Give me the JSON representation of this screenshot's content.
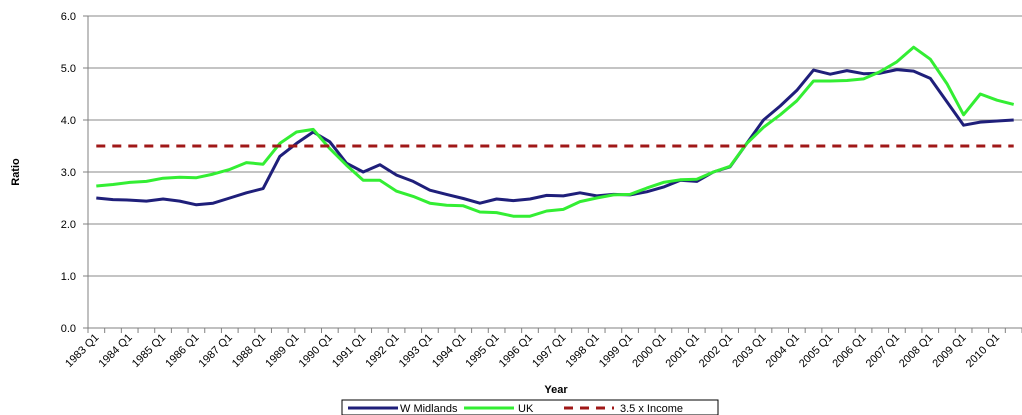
{
  "chart_data": {
    "type": "line",
    "title": "",
    "xlabel": "Year",
    "ylabel": "Ratio",
    "ylim": [
      0,
      6
    ],
    "yticks": [
      "0.0",
      "1.0",
      "2.0",
      "3.0",
      "4.0",
      "5.0",
      "6.0"
    ],
    "grid": "horizontal",
    "legend_position": "bottom",
    "categories": [
      "1983 Q1",
      "1983 Q3",
      "1984 Q1",
      "1984 Q3",
      "1985 Q1",
      "1985 Q3",
      "1986 Q1",
      "1986 Q3",
      "1987 Q1",
      "1987 Q3",
      "1988 Q1",
      "1988 Q3",
      "1989 Q1",
      "1989 Q3",
      "1990 Q1",
      "1990 Q3",
      "1991 Q1",
      "1991 Q3",
      "1992 Q1",
      "1992 Q3",
      "1993 Q1",
      "1993 Q3",
      "1994 Q1",
      "1994 Q3",
      "1995 Q1",
      "1995 Q3",
      "1996 Q1",
      "1996 Q3",
      "1997 Q1",
      "1997 Q3",
      "1998 Q1",
      "1998 Q3",
      "1999 Q1",
      "1999 Q3",
      "2000 Q1",
      "2000 Q3",
      "2001 Q1",
      "2001 Q3",
      "2002 Q1",
      "2002 Q3",
      "2003 Q1",
      "2003 Q3",
      "2004 Q1",
      "2004 Q3",
      "2005 Q1",
      "2005 Q3",
      "2006 Q1",
      "2006 Q3",
      "2007 Q1",
      "2007 Q3",
      "2008 Q1",
      "2008 Q3",
      "2009 Q1",
      "2009 Q3",
      "2010 Q1",
      "2010 Q3"
    ],
    "tick_labels": [
      "1983 Q1",
      "1984 Q1",
      "1985 Q1",
      "1986 Q1",
      "1987 Q1",
      "1988 Q1",
      "1989 Q1",
      "1990 Q1",
      "1991 Q1",
      "1992 Q1",
      "1993 Q1",
      "1994 Q1",
      "1995 Q1",
      "1996 Q1",
      "1997 Q1",
      "1998 Q1",
      "1999 Q1",
      "2000 Q1",
      "2001 Q1",
      "2002 Q1",
      "2003 Q1",
      "2004 Q1",
      "2005 Q1",
      "2006 Q1",
      "2007 Q1",
      "2008 Q1",
      "2009 Q1",
      "2010 Q1"
    ],
    "series": [
      {
        "name": "W Midlands",
        "color": "#1f1f7a",
        "style": "solid",
        "values": [
          2.5,
          2.47,
          2.46,
          2.44,
          2.48,
          2.44,
          2.37,
          2.4,
          2.5,
          2.6,
          2.68,
          3.3,
          3.55,
          3.77,
          3.58,
          3.17,
          3.0,
          3.14,
          2.94,
          2.82,
          2.65,
          2.57,
          2.49,
          2.4,
          2.48,
          2.45,
          2.48,
          2.55,
          2.54,
          2.6,
          2.54,
          2.57,
          2.56,
          2.62,
          2.71,
          2.84,
          2.82,
          3.0,
          3.1,
          3.55,
          4.0,
          4.27,
          4.57,
          4.96,
          4.88,
          4.95,
          4.89,
          4.9,
          4.97,
          4.94,
          4.8,
          4.35,
          3.9,
          3.96,
          3.98,
          4.0
        ]
      },
      {
        "name": "UK",
        "color": "#33ee33",
        "style": "solid",
        "values": [
          2.73,
          2.76,
          2.8,
          2.82,
          2.88,
          2.9,
          2.89,
          2.96,
          3.05,
          3.18,
          3.15,
          3.55,
          3.77,
          3.82,
          3.45,
          3.13,
          2.84,
          2.84,
          2.63,
          2.53,
          2.4,
          2.36,
          2.35,
          2.23,
          2.22,
          2.15,
          2.15,
          2.25,
          2.28,
          2.43,
          2.5,
          2.56,
          2.57,
          2.69,
          2.8,
          2.85,
          2.86,
          3.0,
          3.11,
          3.55,
          3.86,
          4.1,
          4.37,
          4.75,
          4.75,
          4.76,
          4.79,
          4.93,
          5.12,
          5.4,
          5.17,
          4.7,
          4.1,
          4.5,
          4.38,
          4.3
        ]
      },
      {
        "name": "3.5 x Income",
        "color": "#a01818",
        "style": "dashed",
        "values": [
          3.5,
          3.5,
          3.5,
          3.5,
          3.5,
          3.5,
          3.5,
          3.5,
          3.5,
          3.5,
          3.5,
          3.5,
          3.5,
          3.5,
          3.5,
          3.5,
          3.5,
          3.5,
          3.5,
          3.5,
          3.5,
          3.5,
          3.5,
          3.5,
          3.5,
          3.5,
          3.5,
          3.5,
          3.5,
          3.5,
          3.5,
          3.5,
          3.5,
          3.5,
          3.5,
          3.5,
          3.5,
          3.5,
          3.5,
          3.5,
          3.5,
          3.5,
          3.5,
          3.5,
          3.5,
          3.5,
          3.5,
          3.5,
          3.5,
          3.5,
          3.5,
          3.5,
          3.5,
          3.5,
          3.5,
          3.5
        ]
      }
    ]
  }
}
